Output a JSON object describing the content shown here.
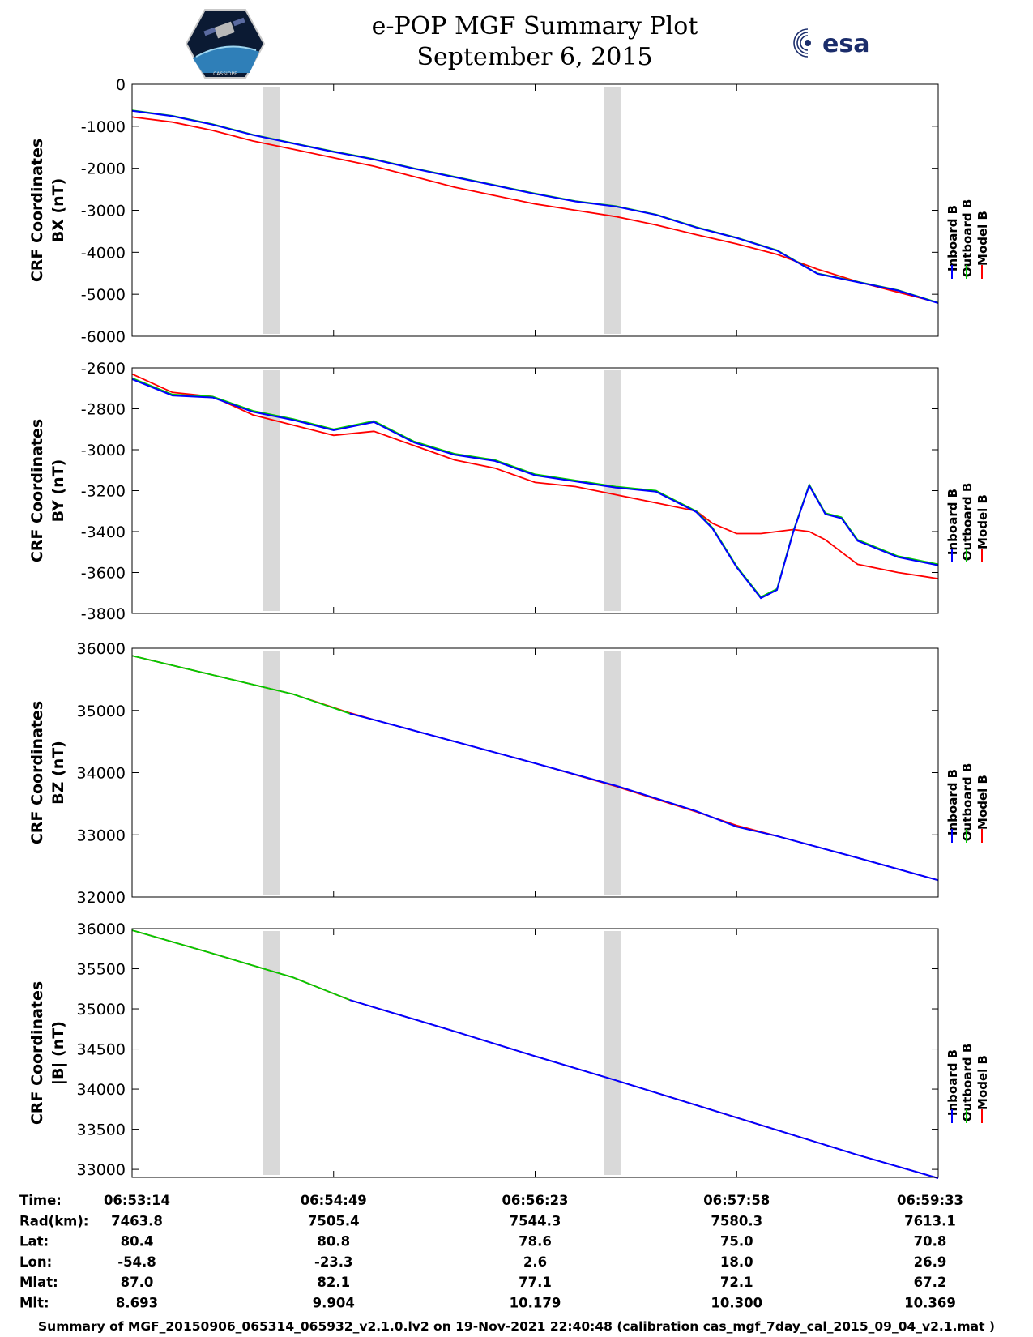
{
  "header": {
    "title_line1": "e-POP MGF Summary Plot",
    "title_line2": "September 6, 2015",
    "esa_logo_text": "esa",
    "left_logo_text": "CASSIOPE",
    "left_logo_icon": "satellite-badge-icon",
    "right_logo_icon": "esa-logo-icon"
  },
  "colors": {
    "inboard": "#0000ff",
    "outboard": "#00cc00",
    "model": "#ff0000",
    "gap": "#d9d9d9"
  },
  "legend": {
    "inboard": "Inboard B",
    "outboard": "Outboard B",
    "model": "Model B"
  },
  "chart_data": [
    {
      "type": "line",
      "ylabel_line1": "CRF Coordinates",
      "ylabel_line2": "BX (nT)",
      "ylim": [
        -6000,
        0
      ],
      "yticks": [
        0,
        -1000,
        -2000,
        -3000,
        -4000,
        -5000,
        -6000
      ],
      "x": [
        0,
        0.05,
        0.1,
        0.15,
        0.2,
        0.25,
        0.3,
        0.35,
        0.4,
        0.45,
        0.5,
        0.55,
        0.6,
        0.65,
        0.7,
        0.75,
        0.8,
        0.85,
        0.9,
        0.95,
        1.0
      ],
      "series": [
        {
          "name": "Model B",
          "values": [
            -780,
            -900,
            -1100,
            -1350,
            -1550,
            -1750,
            -1950,
            -2200,
            -2450,
            -2650,
            -2850,
            -3000,
            -3150,
            -3350,
            -3580,
            -3800,
            -4050,
            -4400,
            -4700,
            -4950,
            -5200
          ]
        },
        {
          "name": "Outboard B",
          "values": [
            -620,
            -750,
            -950,
            -1200,
            -1400,
            -1600,
            -1780,
            -2000,
            -2200,
            -2400,
            -2600,
            -2780,
            -2900,
            -3100,
            -3400,
            -3650,
            -3950,
            -4500,
            -4700,
            -4900,
            -5200
          ]
        },
        {
          "name": "Inboard B",
          "values": [
            -630,
            -760,
            -960,
            -1210,
            -1410,
            -1610,
            -1790,
            -2010,
            -2210,
            -2410,
            -2610,
            -2790,
            -2910,
            -3110,
            -3410,
            -3660,
            -3960,
            -4510,
            -4710,
            -4910,
            -5210
          ]
        }
      ]
    },
    {
      "type": "line",
      "ylabel_line1": "CRF Coordinates",
      "ylabel_line2": "BY (nT)",
      "ylim": [
        -3800,
        -2600
      ],
      "yticks": [
        -2600,
        -2800,
        -3000,
        -3200,
        -3400,
        -3600,
        -3800
      ],
      "x": [
        0,
        0.05,
        0.1,
        0.15,
        0.2,
        0.25,
        0.3,
        0.35,
        0.4,
        0.45,
        0.5,
        0.55,
        0.6,
        0.65,
        0.7,
        0.72,
        0.75,
        0.78,
        0.8,
        0.82,
        0.84,
        0.86,
        0.88,
        0.9,
        0.95,
        1.0
      ],
      "series": [
        {
          "name": "Model B",
          "values": [
            -2630,
            -2720,
            -2740,
            -2830,
            -2880,
            -2930,
            -2910,
            -2980,
            -3050,
            -3090,
            -3160,
            -3180,
            -3220,
            -3260,
            -3300,
            -3360,
            -3410,
            -3410,
            -3400,
            -3390,
            -3400,
            -3440,
            -3500,
            -3560,
            -3600,
            -3630
          ]
        },
        {
          "name": "Outboard B",
          "values": [
            -2650,
            -2730,
            -2740,
            -2810,
            -2850,
            -2900,
            -2860,
            -2960,
            -3020,
            -3050,
            -3120,
            -3150,
            -3180,
            -3200,
            -3300,
            -3380,
            -3570,
            -3720,
            -3680,
            -3400,
            -3170,
            -3310,
            -3330,
            -3440,
            -3520,
            -3560
          ]
        },
        {
          "name": "Inboard B",
          "values": [
            -2655,
            -2735,
            -2745,
            -2815,
            -2855,
            -2905,
            -2865,
            -2965,
            -3025,
            -3055,
            -3125,
            -3155,
            -3185,
            -3205,
            -3305,
            -3385,
            -3575,
            -3725,
            -3685,
            -3405,
            -3175,
            -3315,
            -3335,
            -3445,
            -3525,
            -3565
          ]
        }
      ]
    },
    {
      "type": "line",
      "ylabel_line1": "CRF Coordinates",
      "ylabel_line2": "BZ (nT)",
      "ylim": [
        32000,
        36000
      ],
      "yticks": [
        36000,
        35000,
        34000,
        33000,
        32000
      ],
      "x": [
        0,
        0.1,
        0.2,
        0.27,
        0.3,
        0.4,
        0.5,
        0.6,
        0.7,
        0.75,
        0.8,
        0.9,
        1.0
      ],
      "series": [
        {
          "name": "Model B",
          "values": [
            35880,
            35570,
            35260,
            34960,
            34850,
            34500,
            34150,
            33780,
            33370,
            33150,
            32980,
            32630,
            32270
          ]
        },
        {
          "name": "Outboard B",
          "values": [
            35880,
            35570,
            35260,
            34950,
            null,
            null,
            null,
            null,
            null,
            null,
            null,
            null,
            null
          ]
        },
        {
          "name": "Inboard B",
          "values": [
            null,
            null,
            null,
            34950,
            34850,
            34500,
            34150,
            33790,
            33380,
            33130,
            32980,
            32630,
            32270
          ]
        }
      ]
    },
    {
      "type": "line",
      "ylabel_line1": "CRF Coordinates",
      "ylabel_line2": "|B| (nT)",
      "ylim": [
        32900,
        36000
      ],
      "yticks": [
        36000,
        35500,
        35000,
        34500,
        34000,
        33500,
        33000
      ],
      "x": [
        0,
        0.1,
        0.2,
        0.27,
        0.3,
        0.4,
        0.5,
        0.6,
        0.7,
        0.8,
        0.9,
        1.0
      ],
      "series": [
        {
          "name": "Model B",
          "values": [
            35980,
            35690,
            35390,
            35110,
            35020,
            34720,
            34410,
            34110,
            33800,
            33490,
            33180,
            32890
          ]
        },
        {
          "name": "Outboard B",
          "values": [
            35980,
            35690,
            35390,
            35110,
            null,
            null,
            null,
            null,
            null,
            null,
            null,
            null
          ]
        },
        {
          "name": "Inboard B",
          "values": [
            null,
            null,
            null,
            35110,
            35020,
            34720,
            34410,
            34110,
            33800,
            33490,
            33180,
            32890
          ]
        }
      ]
    }
  ],
  "gaps": [
    [
      0.162,
      0.183
    ],
    [
      0.585,
      0.606
    ]
  ],
  "ephemeris": {
    "labels": [
      "Time:",
      "Rad(km):",
      "Lat:",
      "Lon:",
      "Mlat:",
      "Mlt:"
    ],
    "columns": [
      [
        "06:53:14",
        "7463.8",
        "80.4",
        "-54.8",
        "87.0",
        "8.693"
      ],
      [
        "06:54:49",
        "7505.4",
        "80.8",
        "-23.3",
        "82.1",
        "9.904"
      ],
      [
        "06:56:23",
        "7544.3",
        "78.6",
        "2.6",
        "77.1",
        "10.179"
      ],
      [
        "06:57:58",
        "7580.3",
        "75.0",
        "18.0",
        "72.1",
        "10.300"
      ],
      [
        "06:59:33",
        "7613.1",
        "70.8",
        "26.9",
        "67.2",
        "10.369"
      ]
    ]
  },
  "footer": "Summary of MGF_20150906_065314_065932_v2.1.0.lv2 on 19-Nov-2021 22:40:48 (calibration cas_mgf_7day_cal_2015_09_04_v2.1.mat )"
}
